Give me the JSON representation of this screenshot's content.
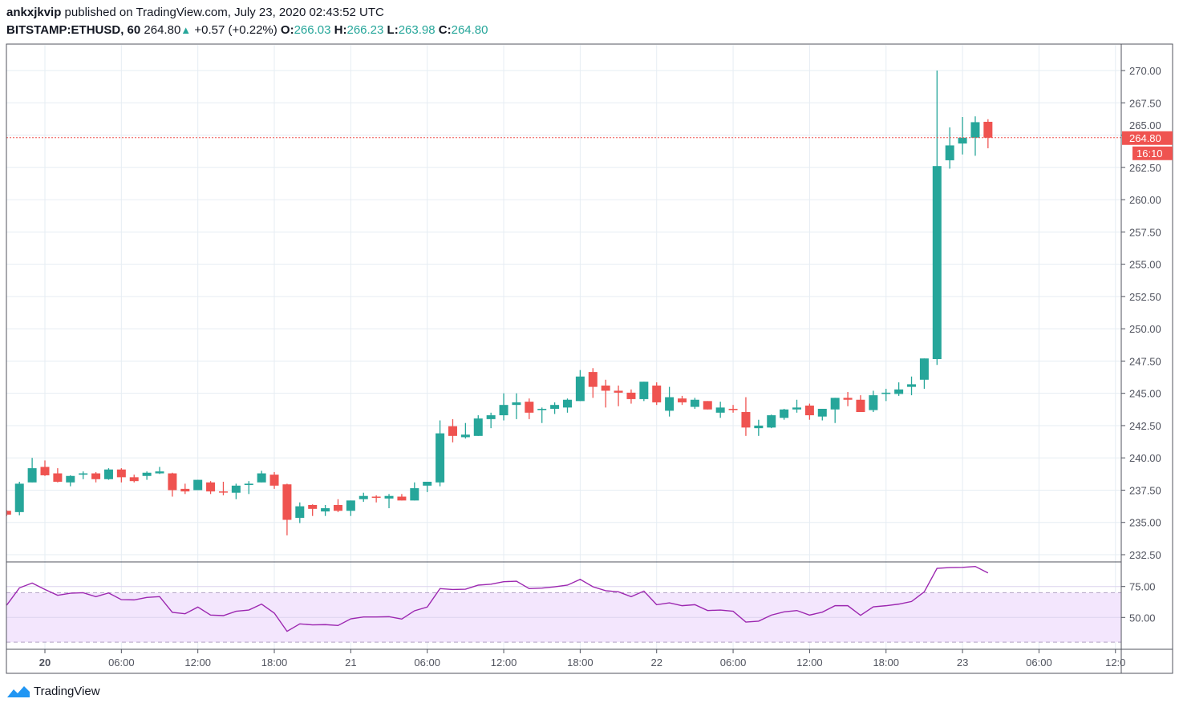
{
  "header": {
    "author": "ankxjkvip",
    "published": " published on TradingView.com, July 23, 2020 02:43:52 UTC",
    "symbol": "BITSTAMP:ETHUSD, 60",
    "last": "264.80",
    "change": "+0.57 (+0.22%)",
    "o_label": "O:",
    "o": "266.03",
    "h_label": "H:",
    "h": "266.23",
    "l_label": "L:",
    "l": "263.98",
    "c_label": "C:",
    "c": "264.80"
  },
  "brand": {
    "name": "TradingView",
    "icon": "tradingview-logo-icon"
  },
  "colors": {
    "up": "#26a69a",
    "down": "#ef5350",
    "rsi": "#9c27b0",
    "rsi_band": "#f3e6fd",
    "grid": "#e6edf3",
    "price_line": "#ef5350"
  },
  "chart_data": {
    "type": "candlestick",
    "symbol": "BITSTAMP:ETHUSD",
    "interval": "60",
    "x_start": "2020-07-19 21:00",
    "ylim": [
      231.5,
      271.5
    ],
    "y_ticks": [
      "270.00",
      "267.50",
      "265.00",
      "262.50",
      "260.00",
      "257.50",
      "255.00",
      "252.50",
      "250.00",
      "247.50",
      "245.00",
      "242.50",
      "240.00",
      "237.50",
      "235.00",
      "232.50"
    ],
    "x_ticks": [
      {
        "label": "20",
        "bold": true,
        "hour": 0
      },
      {
        "label": "06:00",
        "hour": 6
      },
      {
        "label": "12:00",
        "hour": 12
      },
      {
        "label": "18:00",
        "hour": 18
      },
      {
        "label": "21",
        "hour": 24
      },
      {
        "label": "06:00",
        "hour": 30
      },
      {
        "label": "12:00",
        "hour": 36
      },
      {
        "label": "18:00",
        "hour": 42
      },
      {
        "label": "22",
        "hour": 48
      },
      {
        "label": "06:00",
        "hour": 54
      },
      {
        "label": "12:00",
        "hour": 60
      },
      {
        "label": "18:00",
        "hour": 66
      },
      {
        "label": "23",
        "hour": 72
      },
      {
        "label": "06:00",
        "hour": 78
      },
      {
        "label": "12:0",
        "hour": 84
      }
    ],
    "last_price": "264.80",
    "countdown": "16:10",
    "ohlc": [
      [
        235.9,
        235.95,
        235.5,
        235.6
      ],
      [
        235.8,
        238.15,
        235.55,
        238.0
      ],
      [
        238.1,
        240.0,
        238.1,
        239.2
      ],
      [
        239.3,
        239.8,
        238.6,
        238.65
      ],
      [
        238.8,
        239.2,
        238.1,
        238.15
      ],
      [
        238.1,
        238.65,
        237.8,
        238.6
      ],
      [
        238.7,
        238.95,
        238.35,
        238.8
      ],
      [
        238.8,
        238.9,
        238.1,
        238.35
      ],
      [
        238.35,
        239.2,
        238.3,
        239.1
      ],
      [
        239.1,
        239.2,
        238.1,
        238.5
      ],
      [
        238.5,
        238.7,
        238.1,
        238.2
      ],
      [
        238.6,
        238.95,
        238.3,
        238.85
      ],
      [
        238.8,
        239.3,
        238.75,
        238.95
      ],
      [
        238.8,
        238.85,
        237.0,
        237.5
      ],
      [
        237.6,
        238.0,
        237.2,
        237.4
      ],
      [
        237.5,
        238.3,
        237.5,
        238.3
      ],
      [
        238.1,
        238.2,
        237.2,
        237.4
      ],
      [
        237.4,
        238.15,
        237.1,
        237.35
      ],
      [
        237.3,
        238.0,
        236.8,
        237.85
      ],
      [
        237.9,
        238.2,
        237.2,
        238.0
      ],
      [
        238.1,
        239.0,
        238.1,
        238.8
      ],
      [
        238.7,
        238.9,
        237.6,
        237.85
      ],
      [
        237.95,
        238.0,
        234.0,
        235.2
      ],
      [
        235.35,
        236.55,
        234.95,
        236.25
      ],
      [
        236.35,
        236.4,
        235.5,
        236.05
      ],
      [
        235.85,
        236.35,
        235.5,
        236.1
      ],
      [
        236.35,
        236.8,
        235.8,
        235.9
      ],
      [
        235.9,
        236.7,
        235.5,
        236.7
      ],
      [
        236.8,
        237.3,
        236.6,
        237.05
      ],
      [
        237.0,
        237.1,
        236.55,
        236.95
      ],
      [
        236.85,
        237.2,
        236.1,
        237.05
      ],
      [
        237.0,
        237.2,
        236.7,
        236.7
      ],
      [
        236.7,
        238.1,
        236.7,
        237.65
      ],
      [
        237.85,
        238.15,
        237.35,
        238.15
      ],
      [
        238.1,
        242.9,
        237.8,
        241.9
      ],
      [
        242.45,
        243.0,
        241.2,
        241.7
      ],
      [
        241.6,
        242.7,
        241.5,
        241.8
      ],
      [
        241.7,
        243.3,
        241.7,
        243.05
      ],
      [
        243.0,
        243.5,
        242.3,
        243.3
      ],
      [
        243.3,
        245.0,
        242.9,
        244.1
      ],
      [
        244.1,
        245.0,
        243.0,
        244.3
      ],
      [
        244.35,
        244.6,
        243.0,
        243.5
      ],
      [
        243.7,
        243.9,
        242.7,
        243.8
      ],
      [
        243.8,
        244.3,
        243.4,
        244.1
      ],
      [
        243.9,
        244.6,
        243.5,
        244.5
      ],
      [
        244.4,
        246.8,
        244.4,
        246.3
      ],
      [
        246.65,
        246.95,
        244.65,
        245.5
      ],
      [
        245.6,
        246.05,
        243.9,
        245.2
      ],
      [
        245.2,
        245.6,
        244.0,
        245.05
      ],
      [
        245.05,
        245.3,
        244.2,
        244.55
      ],
      [
        244.55,
        245.9,
        244.4,
        245.9
      ],
      [
        245.6,
        245.85,
        244.1,
        244.3
      ],
      [
        243.65,
        245.5,
        243.2,
        244.7
      ],
      [
        244.6,
        244.8,
        244.1,
        244.3
      ],
      [
        243.95,
        244.65,
        243.8,
        244.5
      ],
      [
        244.4,
        244.4,
        243.75,
        243.75
      ],
      [
        243.5,
        244.35,
        243.1,
        243.9
      ],
      [
        243.8,
        244.1,
        243.5,
        243.7
      ],
      [
        243.55,
        244.7,
        241.7,
        242.35
      ],
      [
        242.3,
        242.95,
        241.7,
        242.5
      ],
      [
        242.35,
        243.35,
        242.3,
        243.3
      ],
      [
        243.1,
        243.8,
        242.95,
        243.75
      ],
      [
        243.75,
        244.5,
        243.5,
        243.9
      ],
      [
        244.05,
        244.2,
        242.95,
        243.3
      ],
      [
        243.2,
        243.8,
        242.9,
        243.8
      ],
      [
        243.75,
        244.65,
        242.7,
        244.65
      ],
      [
        244.65,
        245.1,
        244.0,
        244.5
      ],
      [
        244.5,
        244.85,
        243.55,
        243.55
      ],
      [
        243.7,
        245.2,
        243.55,
        244.85
      ],
      [
        244.95,
        245.35,
        244.4,
        245.05
      ],
      [
        244.95,
        245.85,
        244.8,
        245.3
      ],
      [
        245.5,
        246.3,
        244.85,
        245.7
      ],
      [
        246.05,
        247.7,
        245.35,
        247.7
      ],
      [
        247.65,
        270.0,
        247.2,
        262.6
      ],
      [
        263.05,
        265.6,
        262.4,
        264.2
      ],
      [
        264.35,
        266.4,
        263.5,
        264.8
      ],
      [
        264.8,
        266.45,
        263.4,
        266.0
      ],
      [
        266.03,
        266.23,
        263.98,
        264.8
      ]
    ],
    "rsi": {
      "ylim": [
        23,
        98
      ],
      "y_ticks": [
        "75.00",
        "50.00"
      ],
      "bands": [
        70,
        30
      ],
      "values": [
        59.9,
        73.9,
        77.8,
        72.6,
        67.9,
        69.6,
        70.0,
        66.8,
        69.8,
        64.4,
        64.2,
        66.2,
        66.8,
        54.1,
        53.0,
        58.4,
        51.9,
        51.5,
        55.0,
        56.0,
        60.8,
        53.5,
        38.8,
        44.8,
        44.0,
        44.2,
        43.5,
        48.9,
        50.4,
        50.4,
        50.6,
        48.7,
        55.4,
        58.4,
        73.3,
        72.6,
        72.8,
        76.1,
        76.9,
        78.9,
        79.3,
        73.3,
        73.7,
        74.8,
        76.1,
        80.8,
        74.8,
        71.6,
        70.7,
        66.8,
        71.3,
        60.3,
        61.8,
        59.5,
        60.3,
        55.6,
        56.0,
        55.0,
        46.3,
        47.0,
        51.9,
        54.5,
        55.6,
        51.9,
        54.3,
        59.5,
        59.5,
        51.7,
        58.6,
        59.5,
        60.8,
        62.9,
        70.7,
        89.7,
        90.3,
        90.5,
        91.2,
        86.0
      ]
    }
  }
}
